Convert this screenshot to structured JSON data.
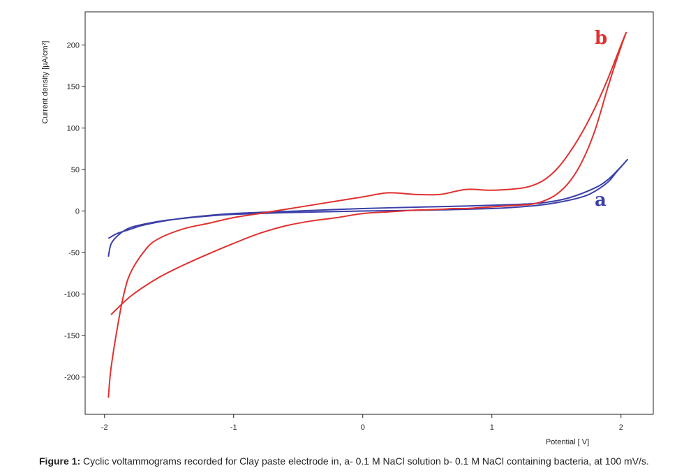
{
  "chart_data": {
    "type": "line",
    "xlabel": "Potential [ V]",
    "ylabel": "Current density [µA/cm²]",
    "xlim": [
      -2.15,
      2.25
    ],
    "ylim": [
      -245,
      240
    ],
    "xticks": [
      -2,
      -1,
      0,
      1,
      2
    ],
    "xtick_labels": [
      "-2",
      "-1",
      "0",
      "1",
      "2"
    ],
    "yticks": [
      200,
      150,
      100,
      50,
      0,
      -50,
      -100,
      -150,
      -200
    ],
    "ytick_labels": [
      "200",
      "150",
      "100",
      "50",
      "0",
      "-50",
      "-100",
      "-150",
      "-200"
    ],
    "grid": false,
    "series": [
      {
        "name": "a",
        "color": "#3b3fa8",
        "x": [
          -1.97,
          -1.95,
          -1.9,
          -1.8,
          -1.6,
          -1.4,
          -1.2,
          -1.0,
          -0.6,
          0.0,
          0.5,
          1.0,
          1.3,
          1.5,
          1.7,
          1.8,
          1.9,
          1.96,
          2.05,
          1.98,
          1.9,
          1.8,
          1.6,
          1.4,
          1.2,
          1.0,
          0.8,
          0.5,
          0.0,
          -0.5,
          -1.0,
          -1.3,
          -1.5,
          -1.7,
          -1.8,
          -1.9,
          -1.97
        ],
        "y": [
          -55,
          -40,
          -30,
          -20,
          -13,
          -9,
          -6,
          -4,
          -2,
          0,
          1,
          3,
          6,
          10,
          17,
          24,
          35,
          46,
          62,
          50,
          38,
          28,
          16,
          10,
          8,
          7,
          6,
          5,
          3,
          0,
          -3,
          -7,
          -11,
          -17,
          -22,
          -27,
          -33
        ]
      },
      {
        "name": "b",
        "color": "#e0312f",
        "x": [
          -1.95,
          -1.8,
          -1.6,
          -1.4,
          -1.2,
          -1.0,
          -0.8,
          -0.6,
          -0.4,
          -0.2,
          0.0,
          0.2,
          0.3,
          0.4,
          0.6,
          0.7,
          0.8,
          0.9,
          1.0,
          1.1,
          1.2,
          1.3,
          1.4,
          1.5,
          1.6,
          1.7,
          1.8,
          1.9,
          2.0,
          2.04,
          2.0,
          1.9,
          1.8,
          1.7,
          1.6,
          1.5,
          1.4,
          1.3,
          1.2,
          1.0,
          0.8,
          0.6,
          0.4,
          0.2,
          0.0,
          -0.2,
          -0.4,
          -0.6,
          -0.8,
          -1.0,
          -1.2,
          -1.4,
          -1.6,
          -1.7,
          -1.8,
          -1.85,
          -1.9,
          -1.95,
          -1.97
        ],
        "y": [
          -125,
          -103,
          -82,
          -66,
          -52,
          -39,
          -27,
          -18,
          -12,
          -8,
          -3,
          -1,
          0,
          1,
          2,
          3,
          3,
          4,
          5,
          6,
          7,
          8,
          12,
          20,
          35,
          60,
          98,
          150,
          198,
          215,
          200,
          160,
          125,
          95,
          70,
          50,
          37,
          30,
          27,
          25,
          26,
          20,
          20,
          22,
          17,
          12,
          7,
          2,
          -3,
          -8,
          -15,
          -22,
          -35,
          -50,
          -75,
          -100,
          -140,
          -190,
          -225
        ]
      }
    ]
  },
  "caption": {
    "label": "Figure 1:",
    "text": " Cyclic voltammograms recorded for Clay paste electrode in, a- 0.1 M NaCl solution b- 0.1 M NaCl containing bacteria, at 100 mV/s."
  }
}
